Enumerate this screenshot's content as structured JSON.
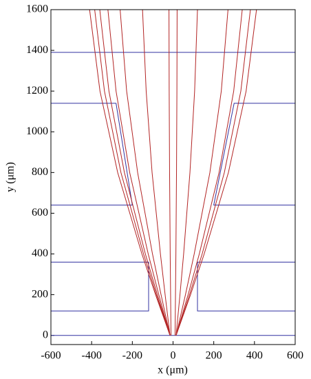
{
  "chart_data": {
    "type": "line",
    "x_label": "x (μm)",
    "y_label": "y (μm)",
    "xlim": [
      -600,
      600
    ],
    "ylim": [
      -45,
      1600
    ],
    "xticks": [
      -600,
      -400,
      -200,
      0,
      200,
      400,
      600
    ],
    "yticks": [
      0,
      200,
      400,
      600,
      800,
      1000,
      1200,
      1400,
      1600
    ],
    "series": [
      {
        "color": "#b22222",
        "x": [
          -15,
          -86,
          -153,
          -272,
          -359,
          -410
        ],
        "values": [
          0,
          200,
          400,
          800,
          1200,
          1600
        ]
      },
      {
        "color": "#b22222",
        "x": [
          -15,
          -82,
          -145,
          -256,
          -337,
          -385
        ],
        "values": [
          0,
          200,
          400,
          800,
          1200,
          1600
        ]
      },
      {
        "color": "#b22222",
        "x": [
          -15,
          -77,
          -136,
          -239,
          -315,
          -360
        ],
        "values": [
          0,
          200,
          400,
          800,
          1200,
          1600
        ]
      },
      {
        "color": "#b22222",
        "x": [
          -15,
          -70,
          -122,
          -213,
          -280,
          -320
        ],
        "values": [
          0,
          200,
          400,
          800,
          1200,
          1600
        ]
      },
      {
        "color": "#b22222",
        "x": [
          -15,
          -59,
          -101,
          -174,
          -228,
          -260
        ],
        "values": [
          0,
          200,
          400,
          800,
          1200,
          1600
        ]
      },
      {
        "color": "#b22222",
        "x": [
          -15,
          -39,
          -62,
          -103,
          -132,
          -150
        ],
        "values": [
          0,
          200,
          400,
          800,
          1200,
          1600
        ]
      },
      {
        "color": "#b22222",
        "x": [
          -10,
          -12,
          -14,
          -17,
          -19,
          -20
        ],
        "values": [
          0,
          200,
          400,
          800,
          1200,
          1600
        ]
      },
      {
        "color": "#b22222",
        "x": [
          10,
          12,
          14,
          17,
          19,
          20
        ],
        "values": [
          0,
          200,
          400,
          800,
          1200,
          1600
        ]
      },
      {
        "color": "#b22222",
        "x": [
          15,
          34,
          52,
          83,
          106,
          120
        ],
        "values": [
          0,
          200,
          400,
          800,
          1200,
          1600
        ]
      },
      {
        "color": "#b22222",
        "x": [
          15,
          61,
          104,
          181,
          237,
          270
        ],
        "values": [
          0,
          200,
          400,
          800,
          1200,
          1600
        ]
      },
      {
        "color": "#b22222",
        "x": [
          15,
          74,
          129,
          226,
          298,
          340
        ],
        "values": [
          0,
          200,
          400,
          800,
          1200,
          1600
        ]
      },
      {
        "color": "#b22222",
        "x": [
          15,
          81,
          143,
          252,
          333,
          380
        ],
        "values": [
          0,
          200,
          400,
          800,
          1200,
          1600
        ]
      },
      {
        "color": "#b22222",
        "x": [
          15,
          86,
          153,
          272,
          359,
          410
        ],
        "values": [
          0,
          200,
          400,
          800,
          1200,
          1600
        ]
      }
    ],
    "electrodes": {
      "color": "#3030a0",
      "shapes": [
        {
          "x": [
            -600,
            600
          ],
          "y": [
            1390,
            1390
          ]
        },
        {
          "x": [
            -600,
            600
          ],
          "y": [
            0,
            0
          ]
        },
        {
          "x": [
            -600,
            -280,
            -200,
            -600
          ],
          "y": [
            1140,
            1140,
            640,
            640
          ]
        },
        {
          "x": [
            600,
            300,
            200,
            600
          ],
          "y": [
            1140,
            1140,
            640,
            640
          ]
        },
        {
          "x": [
            -600,
            -120,
            -120,
            -600
          ],
          "y": [
            360,
            360,
            120,
            120
          ]
        },
        {
          "x": [
            600,
            120,
            120,
            600
          ],
          "y": [
            360,
            360,
            120,
            120
          ]
        }
      ]
    }
  }
}
